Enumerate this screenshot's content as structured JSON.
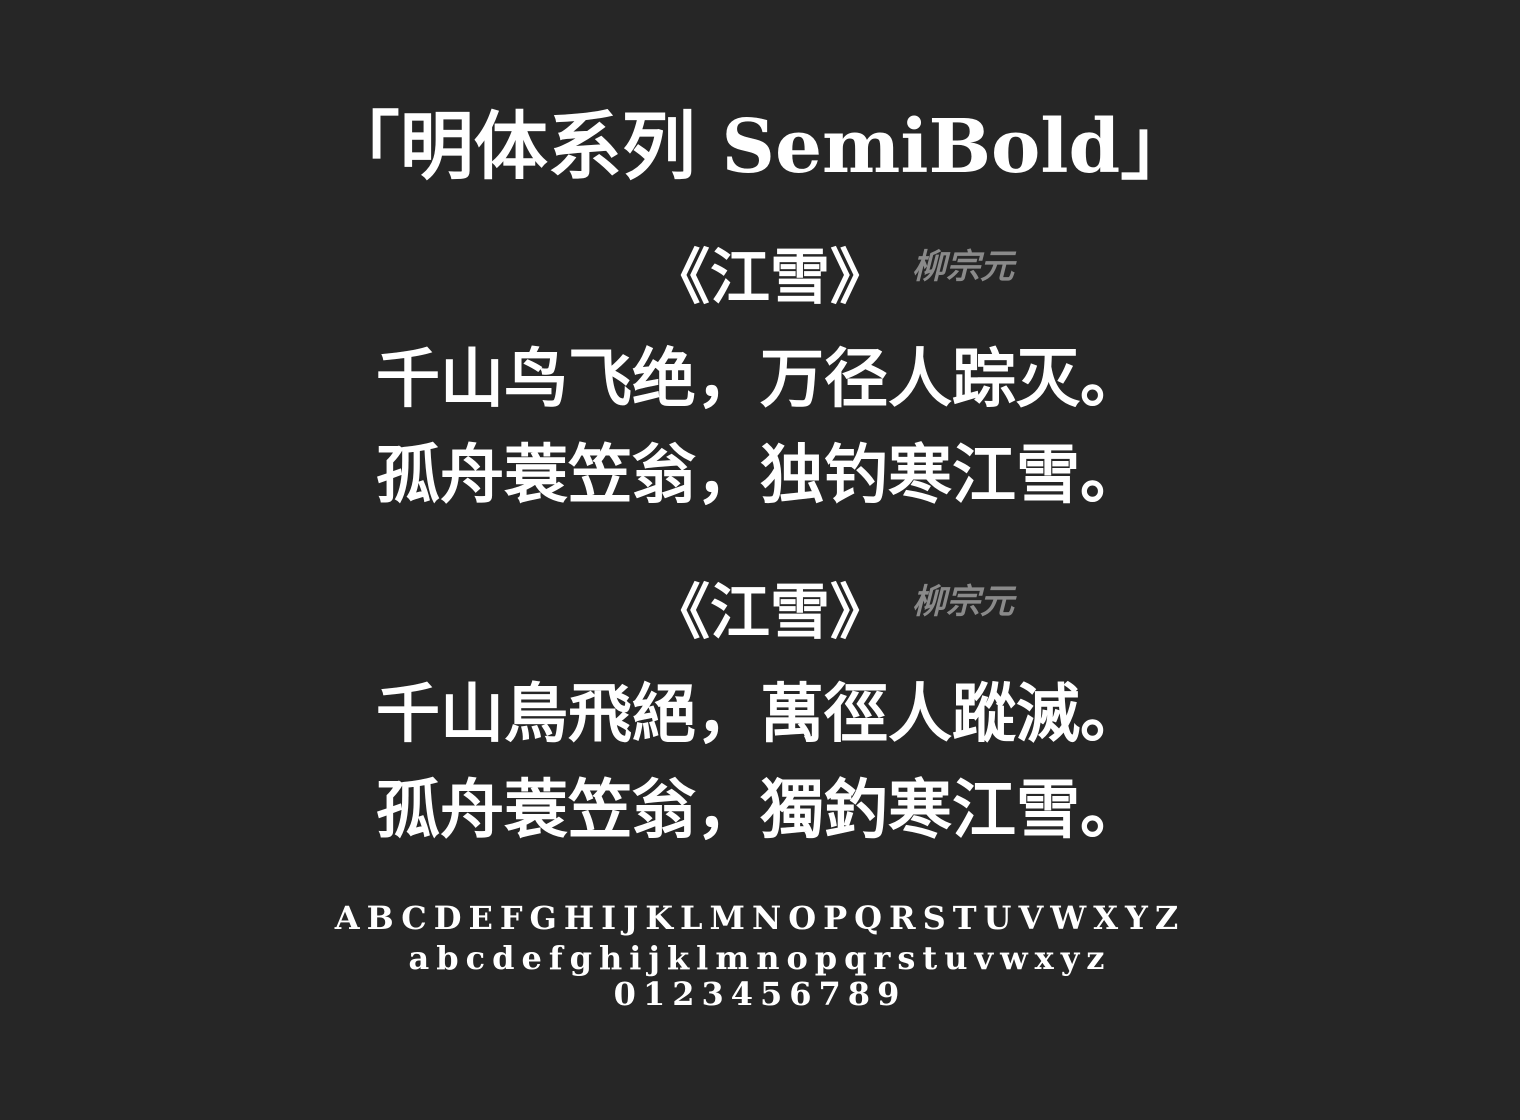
{
  "title": "「明体系列 SemiBold」",
  "poems": [
    {
      "title": "《江雪》",
      "author": "柳宗元",
      "lines": [
        "千山鸟飞绝，万径人踪灭。",
        "孤舟蓑笠翁，独钓寒江雪。"
      ]
    },
    {
      "title": "《江雪》",
      "author": "柳宗元",
      "lines": [
        "千山鳥飛絕，萬徑人蹤滅。",
        "孤舟蓑笠翁，獨釣寒江雪。"
      ]
    }
  ],
  "glyphs": {
    "uppercase": "ABCDEFGHIJKLMNOPQRSTUVWXYZ",
    "lowercase": "abcdefghijklmnopqrstuvwxyz",
    "digits": "0123456789"
  },
  "colors": {
    "background": "#262626",
    "text": "#ffffff",
    "author": "#8a8a8a"
  }
}
